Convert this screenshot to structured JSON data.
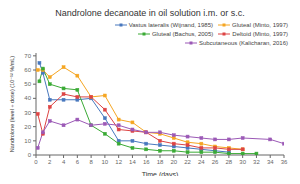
{
  "chart_data": {
    "type": "line",
    "title": "Nandrolone decanoate in oil solution i.m. or s.c.",
    "xlabel": "Time (days)",
    "ylabel": "Nandrolone (level ÷ dose) (10⁻¹² %/mL)",
    "xlim": [
      0,
      36
    ],
    "ylim": [
      0,
      72
    ],
    "xticks": [
      0,
      2,
      4,
      6,
      8,
      10,
      12,
      14,
      16,
      18,
      20,
      22,
      24,
      26,
      28,
      30,
      32,
      34,
      36
    ],
    "yticks": [
      0,
      10,
      20,
      30,
      40,
      50,
      60,
      70
    ],
    "grid": false,
    "legend": "upper right",
    "series": [
      {
        "name": "Vastus lateralis (Wijnand, 1985)",
        "color": "#4878be",
        "marker": "square",
        "x": [
          0.5,
          1,
          2,
          4,
          6,
          8,
          10,
          12,
          14,
          16,
          18,
          20,
          22,
          24,
          26,
          28
        ],
        "values": [
          65,
          58,
          39,
          39,
          39,
          40,
          26,
          10,
          10,
          8,
          7,
          6,
          5,
          4,
          3,
          2
        ]
      },
      {
        "name": "Gluteal (Minto, 1997)",
        "color": "#f5a623",
        "marker": "square",
        "x": [
          0.25,
          1,
          2,
          4,
          6,
          8,
          10,
          12,
          14,
          16,
          18,
          20,
          22,
          24,
          26,
          28,
          30
        ],
        "values": [
          60,
          60,
          55,
          62,
          56,
          41,
          42,
          25,
          23,
          16,
          15,
          12,
          9,
          8,
          6,
          5,
          4
        ]
      },
      {
        "name": "Gluteal (Bachus, 2005)",
        "color": "#3aaa35",
        "marker": "square",
        "x": [
          0.5,
          1,
          2,
          4,
          6,
          8,
          10,
          12,
          14,
          16,
          18,
          20,
          22,
          24,
          26,
          28,
          30,
          32
        ],
        "values": [
          52,
          61,
          50,
          47,
          46,
          21,
          15,
          8,
          5,
          4,
          3,
          3,
          2,
          2,
          2,
          1,
          1,
          1
        ]
      },
      {
        "name": "Deltoid (Minto, 1997)",
        "color": "#d44",
        "marker": "square",
        "x": [
          0.25,
          1,
          2,
          4,
          6,
          8,
          10,
          12,
          14,
          16,
          18,
          20,
          22,
          24,
          26,
          28,
          30
        ],
        "values": [
          29,
          15,
          34,
          43,
          41,
          41,
          32,
          18,
          17,
          16,
          10,
          8,
          7,
          5,
          5,
          4,
          4
        ]
      },
      {
        "name": "Subcutaneous (Kalicharan, 2016)",
        "color": "#9b59b6",
        "marker": "square",
        "x": [
          0.25,
          1,
          2,
          4,
          6,
          8,
          10,
          12,
          14,
          16,
          18,
          20,
          22,
          24,
          26,
          28,
          30,
          34,
          36
        ],
        "values": [
          5,
          16,
          24,
          21,
          25,
          21,
          22,
          21,
          18,
          16,
          16,
          14,
          13,
          12,
          11,
          11,
          12,
          11,
          8
        ]
      }
    ]
  }
}
